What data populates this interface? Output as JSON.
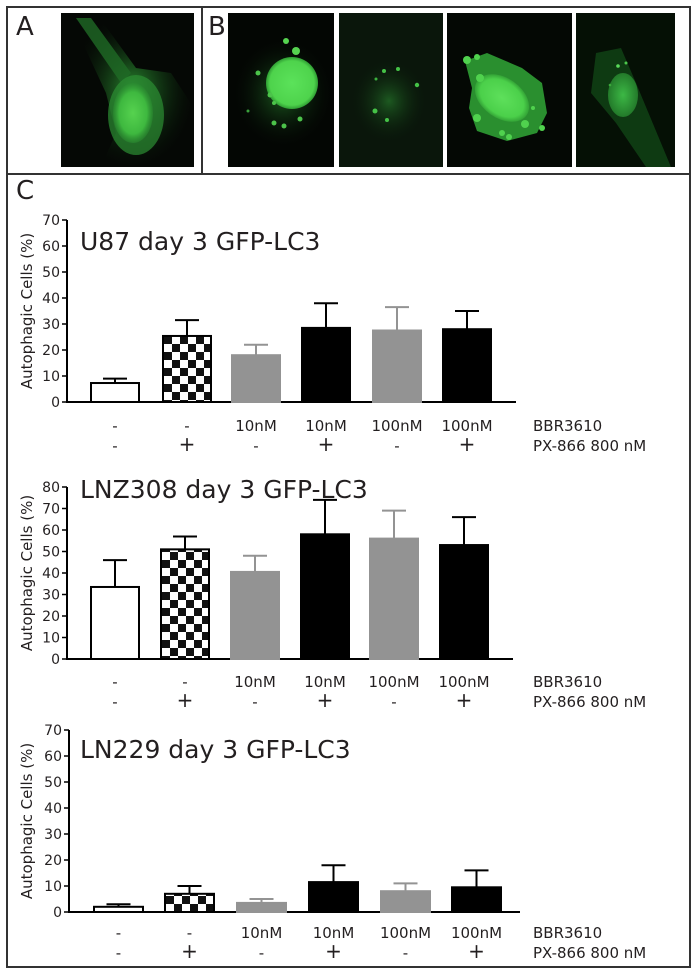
{
  "panels": {
    "A": {
      "label": "A"
    },
    "B": {
      "label": "B"
    },
    "C": {
      "label": "C"
    }
  },
  "colors": {
    "gfp_green": "#3fd84a",
    "bar_white": "#ffffff",
    "bar_gray": "#939393",
    "bar_black": "#000000",
    "axis": "#000000",
    "border": "#333333"
  },
  "row_labels": {
    "bbr": "BBR3610",
    "px": "PX-866 800 nM"
  },
  "chart_data": [
    {
      "type": "bar",
      "title": "U87 day 3 GFP-LC3",
      "ylabel": "Autophagic Cells (%)",
      "xlabel": "",
      "ylim": [
        0,
        70
      ],
      "yticks": [
        0,
        10,
        20,
        30,
        40,
        50,
        60,
        70
      ],
      "grid": false,
      "legend": "none",
      "categories": [
        {
          "bbr": "-",
          "px": "-",
          "style": "white"
        },
        {
          "bbr": "-",
          "px": "+",
          "style": "checker"
        },
        {
          "bbr": "10nM",
          "px": "-",
          "style": "gray"
        },
        {
          "bbr": "10nM",
          "px": "+",
          "style": "black"
        },
        {
          "bbr": "100nM",
          "px": "-",
          "style": "gray"
        },
        {
          "bbr": "100nM",
          "px": "+",
          "style": "black"
        }
      ],
      "values": [
        7.3,
        25.4,
        18,
        28.5,
        27.5,
        28
      ],
      "error_upper": [
        9,
        31.5,
        22,
        38,
        36.5,
        35
      ]
    },
    {
      "type": "bar",
      "title": "LNZ308 day 3 GFP-LC3",
      "ylabel": "Autophagic Cells (%)",
      "xlabel": "",
      "ylim": [
        0,
        80
      ],
      "yticks": [
        0,
        10,
        20,
        30,
        40,
        50,
        60,
        70,
        80
      ],
      "grid": false,
      "legend": "none",
      "categories": [
        {
          "bbr": "-",
          "px": "-",
          "style": "white"
        },
        {
          "bbr": "-",
          "px": "+",
          "style": "checker"
        },
        {
          "bbr": "10nM",
          "px": "-",
          "style": "gray"
        },
        {
          "bbr": "10nM",
          "px": "+",
          "style": "black"
        },
        {
          "bbr": "100nM",
          "px": "-",
          "style": "gray"
        },
        {
          "bbr": "100nM",
          "px": "+",
          "style": "black"
        }
      ],
      "values": [
        33.5,
        51,
        40.5,
        58,
        56,
        53
      ],
      "error_upper": [
        46,
        57,
        48,
        74,
        69,
        66
      ]
    },
    {
      "type": "bar",
      "title": "LN229 day 3 GFP-LC3",
      "ylabel": "Autophagic Cells (%)",
      "xlabel": "",
      "ylim": [
        0,
        70
      ],
      "yticks": [
        0,
        10,
        20,
        30,
        40,
        50,
        60,
        70
      ],
      "grid": false,
      "legend": "none",
      "categories": [
        {
          "bbr": "-",
          "px": "-",
          "style": "white"
        },
        {
          "bbr": "-",
          "px": "+",
          "style": "checker"
        },
        {
          "bbr": "10nM",
          "px": "-",
          "style": "gray"
        },
        {
          "bbr": "10nM",
          "px": "+",
          "style": "black"
        },
        {
          "bbr": "100nM",
          "px": "-",
          "style": "gray"
        },
        {
          "bbr": "100nM",
          "px": "+",
          "style": "black"
        }
      ],
      "values": [
        2,
        7,
        3.5,
        11.5,
        8,
        9.5
      ],
      "error_upper": [
        3,
        10,
        5,
        18,
        11,
        16
      ]
    }
  ]
}
